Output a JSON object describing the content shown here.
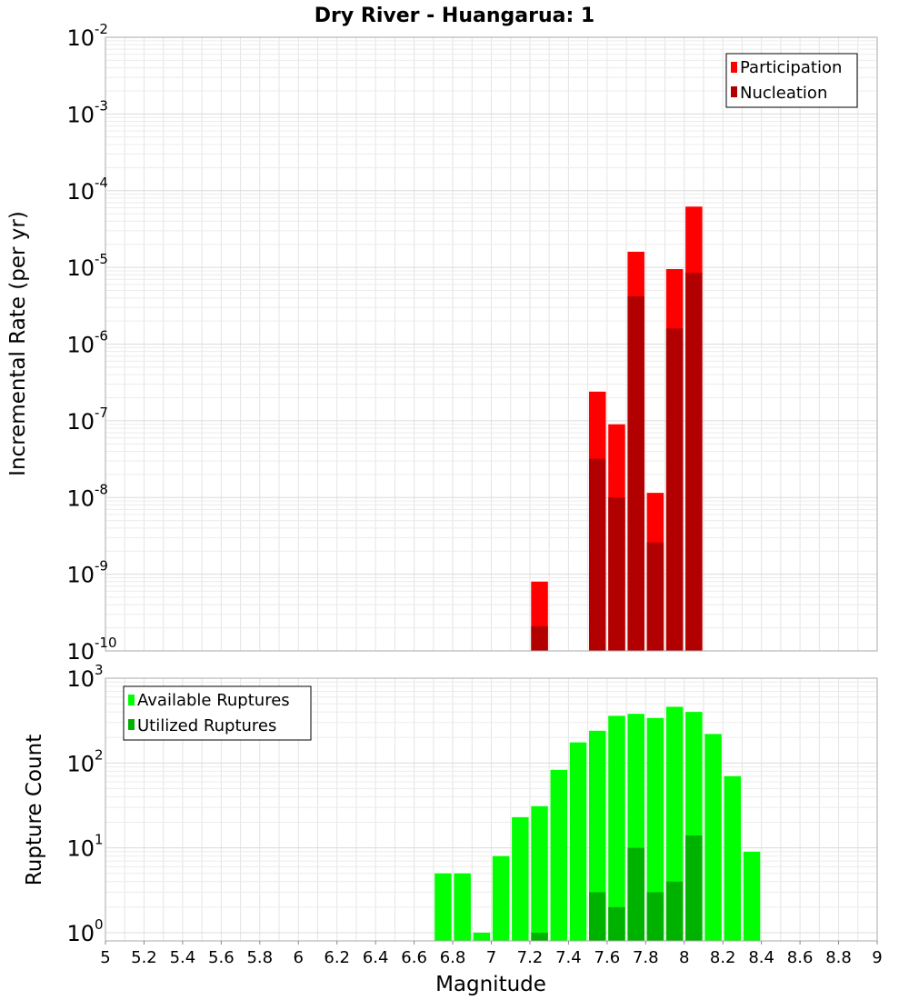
{
  "chart_data": [
    {
      "type": "bar",
      "title": "Dry River - Huangarua: 1",
      "ylabel": "Incremental Rate (per yr)",
      "yscale": "log",
      "ylim": [
        1e-10,
        0.01
      ],
      "xlim": [
        5,
        9
      ],
      "y_tick_exponents": [
        "-10",
        "-9",
        "-8",
        "-7",
        "-6",
        "-5",
        "-4",
        "-3",
        "-2"
      ],
      "legend_position": "top-right",
      "colors": {
        "participation": "#ff0000",
        "nucleation": "#b20000"
      },
      "series": [
        {
          "name": "Participation",
          "x": [
            7.25,
            7.55,
            7.65,
            7.75,
            7.85,
            7.95,
            8.05
          ],
          "values": [
            8e-10,
            2.4e-07,
            9e-08,
            1.6e-05,
            1.15e-08,
            9.5e-06,
            6.2e-05
          ]
        },
        {
          "name": "Nucleation",
          "x": [
            7.25,
            7.55,
            7.65,
            7.75,
            7.85,
            7.95,
            8.05
          ],
          "values": [
            2.1e-10,
            3.2e-08,
            1e-08,
            4.2e-06,
            2.6e-09,
            1.6e-06,
            8.5e-06
          ]
        }
      ]
    },
    {
      "type": "bar",
      "xlabel": "Magnitude",
      "ylabel": "Rupture Count",
      "yscale": "log",
      "ylim": [
        0.8,
        1000
      ],
      "xlim": [
        5,
        9
      ],
      "y_tick_exponents": [
        "0",
        "1",
        "2",
        "3"
      ],
      "x_ticks": [
        "5",
        "5.2",
        "5.4",
        "5.6",
        "5.8",
        "6",
        "6.2",
        "6.4",
        "6.6",
        "6.8",
        "7",
        "7.2",
        "7.4",
        "7.6",
        "7.8",
        "8",
        "8.2",
        "8.4",
        "8.6",
        "8.8",
        "9"
      ],
      "legend_position": "top-left",
      "colors": {
        "available": "#00ff00",
        "utilized": "#00b200"
      },
      "series": [
        {
          "name": "Available Ruptures",
          "x": [
            6.75,
            6.85,
            6.95,
            7.05,
            7.15,
            7.25,
            7.35,
            7.45,
            7.55,
            7.65,
            7.75,
            7.85,
            7.95,
            8.05,
            8.15,
            8.25,
            8.35
          ],
          "values": [
            5,
            5,
            1,
            8,
            23,
            31,
            83,
            175,
            240,
            360,
            380,
            340,
            460,
            400,
            220,
            70,
            9
          ]
        },
        {
          "name": "Utilized Ruptures",
          "x": [
            7.25,
            7.55,
            7.65,
            7.75,
            7.85,
            7.95,
            8.05
          ],
          "values": [
            1,
            3,
            2,
            10,
            3,
            4,
            14
          ]
        }
      ]
    }
  ]
}
